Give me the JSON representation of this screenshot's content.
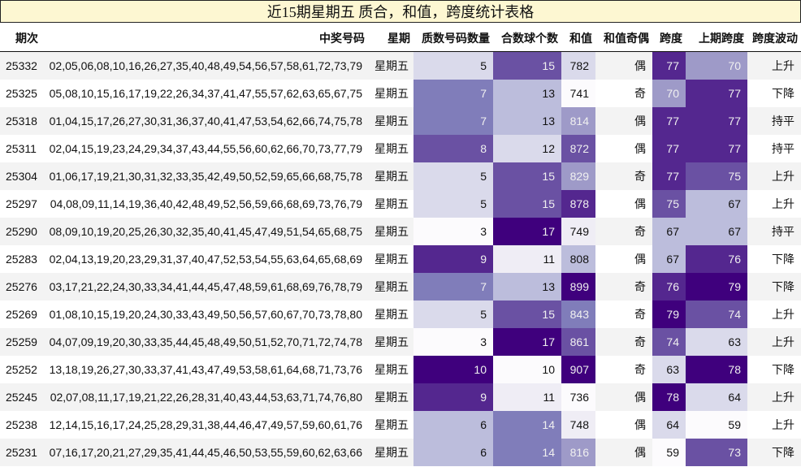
{
  "title": "近15期星期五 质合，和值，跨度统计表格",
  "headers": [
    "期次",
    "中奖号码",
    "星期",
    "质数号码数量",
    "合数球个数",
    "和值",
    "和值奇偶",
    "跨度",
    "上期跨度",
    "跨度波动"
  ],
  "rows": [
    {
      "period": "25332",
      "numbers": "02,05,06,08,10,16,26,27,35,40,48,49,54,56,57,58,61,72,73,79",
      "day": "星期五",
      "primes": "5",
      "composites": "15",
      "sum": "782",
      "parity": "偶",
      "span": "77",
      "prev_span": "70",
      "wave": "上升"
    },
    {
      "period": "25325",
      "numbers": "05,08,10,15,16,17,19,22,26,34,37,41,47,55,57,62,63,65,67,75",
      "day": "星期五",
      "primes": "7",
      "composites": "13",
      "sum": "741",
      "parity": "奇",
      "span": "70",
      "prev_span": "77",
      "wave": "下降"
    },
    {
      "period": "25318",
      "numbers": "01,04,15,17,26,27,30,31,36,37,40,41,47,53,54,62,66,74,75,78",
      "day": "星期五",
      "primes": "7",
      "composites": "13",
      "sum": "814",
      "parity": "偶",
      "span": "77",
      "prev_span": "77",
      "wave": "持平"
    },
    {
      "period": "25311",
      "numbers": "02,04,15,19,23,24,29,34,37,43,44,55,56,60,62,66,70,73,77,79",
      "day": "星期五",
      "primes": "8",
      "composites": "12",
      "sum": "872",
      "parity": "偶",
      "span": "77",
      "prev_span": "77",
      "wave": "持平"
    },
    {
      "period": "25304",
      "numbers": "01,06,17,19,21,30,31,32,33,35,42,49,50,52,59,65,66,68,75,78",
      "day": "星期五",
      "primes": "5",
      "composites": "15",
      "sum": "829",
      "parity": "奇",
      "span": "77",
      "prev_span": "75",
      "wave": "上升"
    },
    {
      "period": "25297",
      "numbers": "04,08,09,11,14,19,36,40,42,48,49,52,56,59,66,68,69,73,76,79",
      "day": "星期五",
      "primes": "5",
      "composites": "15",
      "sum": "878",
      "parity": "偶",
      "span": "75",
      "prev_span": "67",
      "wave": "上升"
    },
    {
      "period": "25290",
      "numbers": "08,09,10,19,20,25,26,30,32,35,40,41,45,47,49,51,54,65,68,75",
      "day": "星期五",
      "primes": "3",
      "composites": "17",
      "sum": "749",
      "parity": "奇",
      "span": "67",
      "prev_span": "67",
      "wave": "持平"
    },
    {
      "period": "25283",
      "numbers": "02,04,13,19,20,23,29,31,37,40,47,52,53,54,55,63,64,65,68,69",
      "day": "星期五",
      "primes": "9",
      "composites": "11",
      "sum": "808",
      "parity": "偶",
      "span": "67",
      "prev_span": "76",
      "wave": "下降"
    },
    {
      "period": "25276",
      "numbers": "03,17,21,22,24,30,33,34,41,44,45,47,48,59,61,68,69,76,78,79",
      "day": "星期五",
      "primes": "7",
      "composites": "13",
      "sum": "899",
      "parity": "奇",
      "span": "76",
      "prev_span": "79",
      "wave": "下降"
    },
    {
      "period": "25269",
      "numbers": "01,08,10,15,19,20,24,30,33,43,49,50,56,57,60,67,70,73,78,80",
      "day": "星期五",
      "primes": "5",
      "composites": "15",
      "sum": "843",
      "parity": "奇",
      "span": "79",
      "prev_span": "74",
      "wave": "上升"
    },
    {
      "period": "25259",
      "numbers": "04,07,09,19,20,30,33,35,44,45,48,49,50,51,52,70,71,72,74,78",
      "day": "星期五",
      "primes": "3",
      "composites": "17",
      "sum": "861",
      "parity": "奇",
      "span": "74",
      "prev_span": "63",
      "wave": "上升"
    },
    {
      "period": "25252",
      "numbers": "13,18,19,26,27,30,33,37,41,43,47,49,53,58,61,64,68,71,73,76",
      "day": "星期五",
      "primes": "10",
      "composites": "10",
      "sum": "907",
      "parity": "奇",
      "span": "63",
      "prev_span": "78",
      "wave": "下降"
    },
    {
      "period": "25245",
      "numbers": "02,07,08,11,17,19,21,22,26,28,31,40,43,44,53,63,71,74,76,80",
      "day": "星期五",
      "primes": "9",
      "composites": "11",
      "sum": "736",
      "parity": "偶",
      "span": "78",
      "prev_span": "64",
      "wave": "上升"
    },
    {
      "period": "25238",
      "numbers": "12,14,15,16,17,24,25,28,29,31,38,44,46,47,49,57,59,60,61,76",
      "day": "星期五",
      "primes": "6",
      "composites": "14",
      "sum": "748",
      "parity": "偶",
      "span": "64",
      "prev_span": "59",
      "wave": "上升"
    },
    {
      "period": "25231",
      "numbers": "07,16,17,20,21,27,29,35,41,44,45,46,50,53,55,59,60,62,63,66",
      "day": "星期五",
      "primes": "6",
      "composites": "14",
      "sum": "816",
      "parity": "偶",
      "span": "59",
      "prev_span": "73",
      "wave": "下降"
    }
  ],
  "colors": {
    "title_bg": "#fdf7d2",
    "heatmap_palette": [
      "#fcfbfd",
      "#efedf5",
      "#dadaeb",
      "#bcbddc",
      "#9e9ac8",
      "#807dba",
      "#6a51a3",
      "#54278f",
      "#3f007d"
    ],
    "row_stripe": "#f3f3f3"
  }
}
